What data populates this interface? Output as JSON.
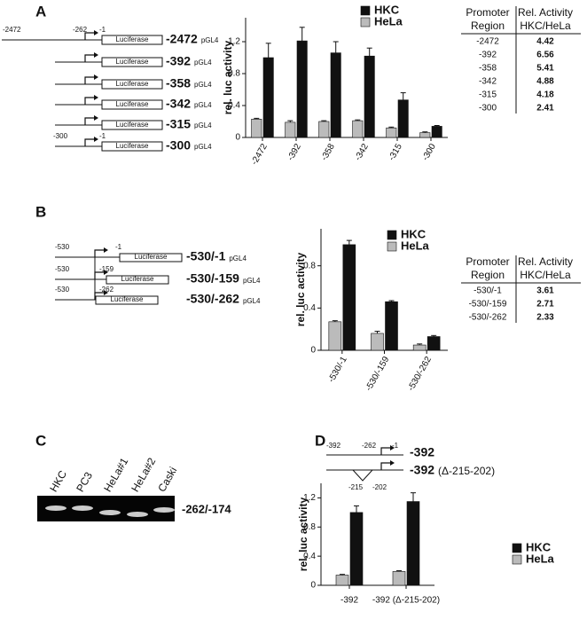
{
  "panel_labels": [
    "A",
    "B",
    "C",
    "D"
  ],
  "constructs_A": [
    {
      "name": "-2472",
      "vector": "pGL4",
      "box": "Luciferase",
      "sites": [
        "-2472",
        "-262",
        "-1"
      ]
    },
    {
      "name": "-392",
      "vector": "pGL4",
      "box": "Luciferase",
      "sites": []
    },
    {
      "name": "-358",
      "vector": "pGL4",
      "box": "Luciferase",
      "sites": []
    },
    {
      "name": "-342",
      "vector": "pGL4",
      "box": "Luciferase",
      "sites": []
    },
    {
      "name": "-315",
      "vector": "pGL4",
      "box": "Luciferase",
      "sites": []
    },
    {
      "name": "-300",
      "vector": "pGL4",
      "box": "Luciferase",
      "sites": [
        "-300",
        "-1"
      ]
    }
  ],
  "constructs_B": [
    {
      "name": "-530/-1",
      "vector": "pGL4",
      "box": "Luciferase",
      "sites": [
        "-530",
        "-1"
      ]
    },
    {
      "name": "-530/-159",
      "vector": "pGL4",
      "box": "Luciferase",
      "sites": [
        "-530",
        "-159"
      ]
    },
    {
      "name": "-530/-262",
      "vector": "pGL4",
      "box": "Luciferase",
      "sites": [
        "-530",
        "-262"
      ]
    }
  ],
  "construct_D": {
    "sites": [
      "-392",
      "-262",
      "-1",
      "-215",
      "-202"
    ],
    "names": [
      "-392",
      "-392"
    ],
    "deletion": "(Δ-215-202)"
  },
  "tables": [
    {
      "header": [
        [
          "Promoter",
          "Region"
        ],
        [
          "Rel. Activity",
          "HKC/HeLa"
        ]
      ],
      "rows": [
        [
          "-2472",
          4.42
        ],
        [
          "-392",
          6.56
        ],
        [
          "-358",
          5.41
        ],
        [
          "-342",
          4.88
        ],
        [
          "-315",
          4.18
        ],
        [
          "-300",
          2.41
        ]
      ]
    },
    {
      "header": [
        [
          "Promoter",
          "Region"
        ],
        [
          "Rel. Activity",
          "HKC/HeLa"
        ]
      ],
      "rows": [
        [
          "-530/-1",
          3.61
        ],
        [
          "-530/-159",
          2.71
        ],
        [
          "-530/-262",
          2.33
        ]
      ]
    }
  ],
  "gel": {
    "lanes": [
      "HKC",
      "PC3",
      "HeLa#1",
      "HeLa#2",
      "Caski"
    ],
    "band": "-262/-174"
  },
  "chart_data": [
    {
      "type": "bar",
      "y_label": "rel. luc activity",
      "ylim": [
        0,
        1.5
      ],
      "yticks": [
        0,
        0.4,
        0.8,
        1.2
      ],
      "categories": [
        "-2472",
        "-392",
        "-358",
        "-342",
        "-315",
        "-300"
      ],
      "series": [
        {
          "name": "HKC",
          "color": "#111111",
          "values": [
            1.0,
            1.21,
            1.06,
            1.02,
            0.47,
            0.14
          ],
          "errors": [
            0.18,
            0.17,
            0.14,
            0.1,
            0.09,
            0.01
          ]
        },
        {
          "name": "HeLa",
          "color": "#bbbbbb",
          "values": [
            0.23,
            0.19,
            0.2,
            0.21,
            0.12,
            0.06
          ],
          "errors": [
            0.01,
            0.02,
            0.01,
            0.01,
            0.01,
            0.01
          ]
        }
      ],
      "legend": "top"
    },
    {
      "type": "bar",
      "y_label": "rel. luc activity",
      "ylim": [
        0,
        1.15
      ],
      "yticks": [
        0,
        0.4,
        0.8
      ],
      "categories": [
        "-530/-1",
        "-530/-159",
        "-530/-262"
      ],
      "series": [
        {
          "name": "HKC",
          "color": "#111111",
          "values": [
            1.0,
            0.46,
            0.13
          ],
          "errors": [
            0.04,
            0.01,
            0.01
          ]
        },
        {
          "name": "HeLa",
          "color": "#bbbbbb",
          "values": [
            0.27,
            0.16,
            0.05
          ],
          "errors": [
            0.01,
            0.02,
            0.01
          ]
        }
      ],
      "legend": "top-right"
    },
    {
      "type": "bar",
      "y_label": "rel. luc activity",
      "ylim": [
        0,
        1.4
      ],
      "yticks": [
        0,
        0.4,
        0.8,
        1.2
      ],
      "categories": [
        "-392",
        "-392 (Δ-215-202)"
      ],
      "series": [
        {
          "name": "HKC",
          "color": "#111111",
          "values": [
            1.0,
            1.15
          ],
          "errors": [
            0.09,
            0.12
          ]
        },
        {
          "name": "HeLa",
          "color": "#bbbbbb",
          "values": [
            0.14,
            0.19
          ],
          "errors": [
            0.01,
            0.01
          ]
        }
      ],
      "legend": "right"
    }
  ]
}
